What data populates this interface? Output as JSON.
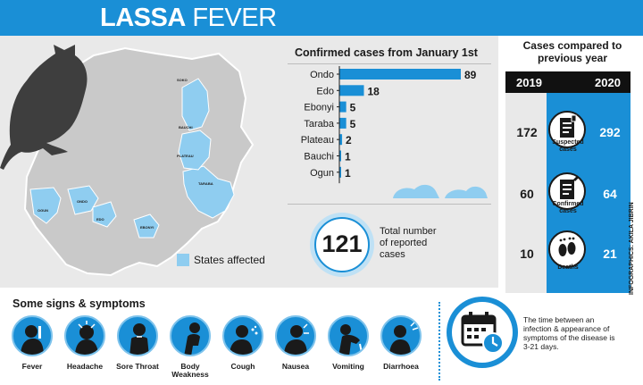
{
  "header": {
    "title_bold": "LASSA",
    "title_light": "FEVER"
  },
  "map": {
    "state_labels": [
      "SOKO",
      "BAUCHI",
      "PLATEAU",
      "TARABA",
      "OGUN",
      "ONDO",
      "EDO",
      "EBONYI"
    ],
    "legend_label": "States affected",
    "affected_color": "#8fcdf0",
    "base_color": "#c9c9c9"
  },
  "chart_data": {
    "type": "bar",
    "title": "Confirmed cases from January 1st",
    "orientation": "horizontal",
    "categories": [
      "Ondo",
      "Edo",
      "Ebonyi",
      "Taraba",
      "Plateau",
      "Bauchi",
      "Ogun"
    ],
    "values": [
      89,
      18,
      5,
      5,
      2,
      1,
      1
    ],
    "xlim": [
      0,
      89
    ],
    "bar_color": "#1a8fd6"
  },
  "total": {
    "number": "121",
    "label": "Total number of reported cases"
  },
  "comparison": {
    "title": "Cases compared to previous year",
    "year_left": "2019",
    "year_right": "2020",
    "rows": [
      {
        "label": "Suspected cases",
        "v2019": "172",
        "v2020": "292",
        "icon": "document-icon"
      },
      {
        "label": "Confirmed cases",
        "v2019": "60",
        "v2020": "64",
        "icon": "document-check-icon"
      },
      {
        "label": "Deaths",
        "v2019": "10",
        "v2020": "21",
        "icon": "footprints-icon"
      }
    ]
  },
  "credit": "INFOGRAPHICS: AKILA JIBRIN",
  "symptoms": {
    "title": "Some signs & symptoms",
    "items": [
      "Fever",
      "Headache",
      "Sore Throat",
      "Body Weakness",
      "Cough",
      "Nausea",
      "Vomiting",
      "Diarrhoea"
    ]
  },
  "incubation": {
    "text": "The time between an infection & appearance of symptoms of the disease is 3-21 days.",
    "icon": "calendar-clock-icon"
  },
  "colors": {
    "accent": "#1a8fd6",
    "light_accent": "#8fcdf0",
    "panel_grey": "#e9e9e9",
    "dark": "#111111"
  }
}
